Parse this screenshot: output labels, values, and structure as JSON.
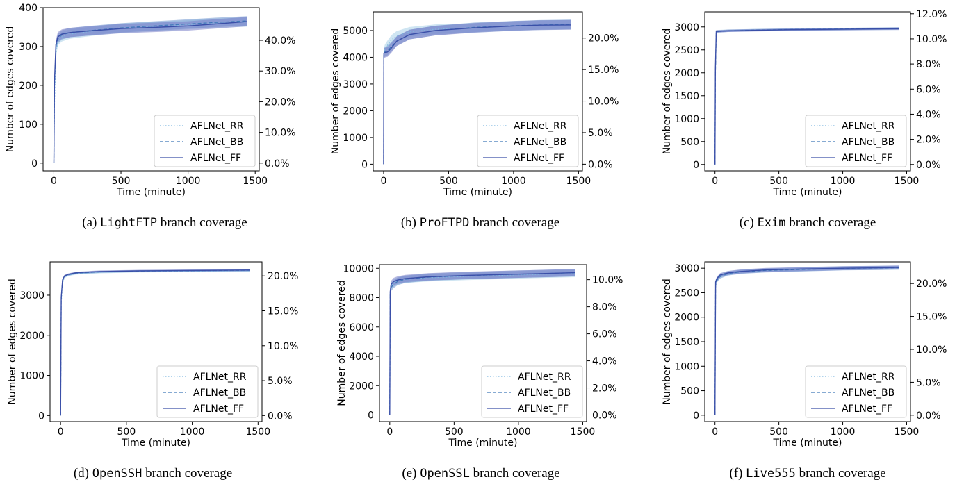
{
  "colors": {
    "RR": "#7fb8e0",
    "BB": "#3f78b8",
    "FF": "#3a4fa8",
    "band_RR": "#a8cfe8",
    "band_BB": "#6f95cf",
    "band_FF": "#7a7fc8"
  },
  "chart_data": [
    {
      "type": "line",
      "caption_label": "(a)",
      "caption_name": "LightFTP",
      "caption_rest": "branch coverage",
      "xlabel": "Time (minute)",
      "ylabel": "Number of edges covered",
      "xlim": [
        -80,
        1530
      ],
      "ylim": [
        -20,
        400
      ],
      "xticks": [
        0,
        500,
        1000,
        1500
      ],
      "yticks": [
        0,
        100,
        200,
        300,
        400
      ],
      "right_ticks": [
        {
          "v": 0,
          "t": "0.0%"
        },
        {
          "v": 79,
          "t": "10.0%"
        },
        {
          "v": 158,
          "t": "20.0%"
        },
        {
          "v": 237,
          "t": "30.0%"
        },
        {
          "v": 316,
          "t": "40.0%"
        }
      ],
      "legend": [
        "AFLNet_RR",
        "AFLNet_BB",
        "AFLNet_FF"
      ],
      "series": [
        {
          "name": "AFLNet_RR",
          "x": [
            0,
            5,
            15,
            30,
            60,
            120,
            300,
            500,
            800,
            1000,
            1200,
            1440
          ],
          "y": [
            0,
            150,
            280,
            315,
            325,
            332,
            340,
            347,
            352,
            356,
            360,
            363
          ],
          "band": 12
        },
        {
          "name": "AFLNet_BB",
          "x": [
            0,
            5,
            15,
            30,
            60,
            120,
            300,
            500,
            800,
            1000,
            1200,
            1440
          ],
          "y": [
            0,
            200,
            300,
            320,
            330,
            336,
            342,
            348,
            354,
            358,
            362,
            366
          ],
          "band": 12
        },
        {
          "name": "AFLNet_FF",
          "x": [
            0,
            5,
            15,
            30,
            60,
            120,
            300,
            500,
            800,
            1000,
            1200,
            1440
          ],
          "y": [
            0,
            210,
            305,
            325,
            332,
            336,
            341,
            346,
            350,
            353,
            358,
            364
          ],
          "band": 12
        }
      ]
    },
    {
      "type": "line",
      "caption_label": "(b)",
      "caption_name": "ProFTPD",
      "caption_rest": "branch coverage",
      "xlabel": "Time (minute)",
      "ylabel": "Number of edges covered",
      "xlim": [
        -80,
        1530
      ],
      "ylim": [
        -250,
        5700
      ],
      "xticks": [
        0,
        500,
        1000,
        1500
      ],
      "yticks": [
        0,
        1000,
        2000,
        3000,
        4000,
        5000
      ],
      "right_ticks": [
        {
          "v": 0,
          "t": "0.0%"
        },
        {
          "v": 1180,
          "t": "5.0%"
        },
        {
          "v": 2360,
          "t": "10.0%"
        },
        {
          "v": 3540,
          "t": "15.0%"
        },
        {
          "v": 4720,
          "t": "20.0%"
        }
      ],
      "legend": [
        "AFLNet_RR",
        "AFLNet_BB",
        "AFLNet_FF"
      ],
      "series": [
        {
          "name": "AFLNet_RR",
          "x": [
            0,
            2,
            10,
            30,
            60,
            100,
            200,
            400,
            700,
            1000,
            1200,
            1440
          ],
          "y": [
            0,
            4150,
            4300,
            4450,
            4650,
            4800,
            4950,
            5050,
            5100,
            5170,
            5200,
            5220
          ],
          "band": 180
        },
        {
          "name": "AFLNet_BB",
          "x": [
            0,
            2,
            10,
            30,
            60,
            100,
            200,
            400,
            700,
            1000,
            1200,
            1440
          ],
          "y": [
            0,
            4150,
            4200,
            4250,
            4400,
            4600,
            4850,
            5000,
            5120,
            5180,
            5210,
            5230
          ],
          "band": 180
        },
        {
          "name": "AFLNet_FF",
          "x": [
            0,
            2,
            10,
            30,
            60,
            100,
            200,
            400,
            700,
            1000,
            1200,
            1440
          ],
          "y": [
            0,
            4150,
            4170,
            4200,
            4350,
            4600,
            4850,
            5000,
            5100,
            5170,
            5200,
            5210
          ],
          "band": 180
        }
      ]
    },
    {
      "type": "line",
      "caption_label": "(c)",
      "caption_name": "Exim",
      "caption_rest": "branch coverage",
      "xlabel": "Time (minute)",
      "ylabel": "Number of edges covered",
      "xlim": [
        -80,
        1530
      ],
      "ylim": [
        -140,
        3330
      ],
      "xticks": [
        0,
        500,
        1000,
        1500
      ],
      "yticks": [
        0,
        500,
        1000,
        1500,
        2000,
        2500,
        3000
      ],
      "right_ticks": [
        {
          "v": 0,
          "t": "0.0%"
        },
        {
          "v": 548,
          "t": "2.0%"
        },
        {
          "v": 1096,
          "t": "4.0%"
        },
        {
          "v": 1644,
          "t": "6.0%"
        },
        {
          "v": 2192,
          "t": "8.0%"
        },
        {
          "v": 2740,
          "t": "10.0%"
        },
        {
          "v": 3288,
          "t": "12.0%"
        }
      ],
      "legend": [
        "AFLNet_RR",
        "AFLNet_BB",
        "AFLNet_FF"
      ],
      "series": [
        {
          "name": "AFLNet_RR",
          "x": [
            0,
            3,
            10,
            20,
            100,
            300,
            600,
            1000,
            1440
          ],
          "y": [
            0,
            2000,
            2900,
            2910,
            2920,
            2930,
            2940,
            2950,
            2960
          ],
          "band": 25
        },
        {
          "name": "AFLNet_BB",
          "x": [
            0,
            3,
            10,
            20,
            100,
            300,
            600,
            1000,
            1440
          ],
          "y": [
            0,
            1900,
            2880,
            2900,
            2915,
            2930,
            2945,
            2955,
            2970
          ],
          "band": 25
        },
        {
          "name": "AFLNet_FF",
          "x": [
            0,
            3,
            10,
            20,
            100,
            300,
            600,
            1000,
            1440
          ],
          "y": [
            0,
            2100,
            2910,
            2905,
            2915,
            2925,
            2940,
            2950,
            2960
          ],
          "band": 25
        }
      ]
    },
    {
      "type": "line",
      "caption_label": "(d)",
      "caption_name": "OpenSSH",
      "caption_rest": "branch coverage",
      "xlabel": "Time (minute)",
      "ylabel": "Number of edges covered",
      "xlim": [
        -80,
        1530
      ],
      "ylim": [
        -150,
        3830
      ],
      "xticks": [
        0,
        500,
        1000,
        1500
      ],
      "yticks": [
        0,
        1000,
        2000,
        3000
      ],
      "right_ticks": [
        {
          "v": 0,
          "t": "0.0%"
        },
        {
          "v": 870,
          "t": "5.0%"
        },
        {
          "v": 1740,
          "t": "10.0%"
        },
        {
          "v": 2610,
          "t": "15.0%"
        },
        {
          "v": 3480,
          "t": "20.0%"
        }
      ],
      "legend": [
        "AFLNet_RR",
        "AFLNet_BB",
        "AFLNet_FF"
      ],
      "series": [
        {
          "name": "AFLNet_RR",
          "x": [
            0,
            5,
            15,
            30,
            60,
            120,
            300,
            600,
            1000,
            1440
          ],
          "y": [
            0,
            2800,
            3300,
            3450,
            3500,
            3540,
            3570,
            3590,
            3600,
            3610
          ],
          "band": 25
        },
        {
          "name": "AFLNet_BB",
          "x": [
            0,
            5,
            15,
            30,
            60,
            120,
            300,
            600,
            1000,
            1440
          ],
          "y": [
            0,
            2900,
            3350,
            3470,
            3510,
            3550,
            3580,
            3600,
            3610,
            3620
          ],
          "band": 25
        },
        {
          "name": "AFLNet_FF",
          "x": [
            0,
            5,
            15,
            30,
            60,
            120,
            300,
            600,
            1000,
            1440
          ],
          "y": [
            0,
            2950,
            3380,
            3480,
            3520,
            3560,
            3590,
            3605,
            3615,
            3625
          ],
          "band": 25
        }
      ]
    },
    {
      "type": "line",
      "caption_label": "(e)",
      "caption_name": "OpenSSL",
      "caption_rest": "branch coverage",
      "xlabel": "Time (minute)",
      "ylabel": "Number of edges covered",
      "xlim": [
        -80,
        1530
      ],
      "ylim": [
        -450,
        10250
      ],
      "xticks": [
        0,
        500,
        1000,
        1500
      ],
      "yticks": [
        0,
        2000,
        4000,
        6000,
        8000,
        10000
      ],
      "right_ticks": [
        {
          "v": 0,
          "t": "0.0%"
        },
        {
          "v": 900,
          "t": "2.0%"
        },
        {
          "v": 1800,
          "t": "4.0%"
        },
        {
          "v": 2700,
          "t": "6.0%"
        },
        {
          "v": 3600,
          "t": "8.0%"
        },
        {
          "v": 4500,
          "t": "10.0%"
        }
      ],
      "right_scale": 2.05,
      "legend": [
        "AFLNet_RR",
        "AFLNet_BB",
        "AFLNet_FF"
      ],
      "series": [
        {
          "name": "AFLNet_RR",
          "x": [
            0,
            3,
            10,
            30,
            60,
            120,
            300,
            600,
            1000,
            1440
          ],
          "y": [
            0,
            8300,
            8800,
            9000,
            9150,
            9250,
            9350,
            9450,
            9550,
            9650
          ],
          "band": 250
        },
        {
          "name": "AFLNet_BB",
          "x": [
            0,
            3,
            10,
            30,
            60,
            120,
            300,
            600,
            1000,
            1440
          ],
          "y": [
            0,
            8200,
            8700,
            8900,
            9100,
            9250,
            9400,
            9500,
            9600,
            9700
          ],
          "band": 250
        },
        {
          "name": "AFLNet_FF",
          "x": [
            0,
            3,
            10,
            30,
            60,
            120,
            300,
            600,
            1000,
            1440
          ],
          "y": [
            0,
            8400,
            8900,
            9100,
            9200,
            9300,
            9420,
            9520,
            9600,
            9700
          ],
          "band": 250
        }
      ]
    },
    {
      "type": "line",
      "caption_label": "(f)",
      "caption_name": "Live555",
      "caption_rest": "branch coverage",
      "xlabel": "Time (minute)",
      "ylabel": "Number of edges covered",
      "xlim": [
        -80,
        1530
      ],
      "ylim": [
        -130,
        3130
      ],
      "xticks": [
        0,
        500,
        1000,
        1500
      ],
      "yticks": [
        0,
        500,
        1000,
        1500,
        2000,
        2500,
        3000
      ],
      "right_ticks": [
        {
          "v": 0,
          "t": "0.0%"
        },
        {
          "v": 672,
          "t": "5.0%"
        },
        {
          "v": 1344,
          "t": "10.0%"
        },
        {
          "v": 2016,
          "t": "15.0%"
        },
        {
          "v": 2688,
          "t": "20.0%"
        }
      ],
      "legend": [
        "AFLNet_RR",
        "AFLNet_BB",
        "AFLNet_FF"
      ],
      "series": [
        {
          "name": "AFLNet_RR",
          "x": [
            0,
            5,
            15,
            40,
            100,
            200,
            400,
            700,
            1000,
            1440
          ],
          "y": [
            0,
            2700,
            2780,
            2850,
            2900,
            2930,
            2960,
            2980,
            3000,
            3010
          ],
          "band": 40
        },
        {
          "name": "AFLNet_BB",
          "x": [
            0,
            5,
            15,
            40,
            100,
            200,
            400,
            700,
            1000,
            1440
          ],
          "y": [
            0,
            2650,
            2750,
            2830,
            2890,
            2925,
            2955,
            2975,
            2995,
            3010
          ],
          "band": 40
        },
        {
          "name": "AFLNet_FF",
          "x": [
            0,
            5,
            15,
            40,
            100,
            200,
            400,
            700,
            1000,
            1440
          ],
          "y": [
            0,
            2720,
            2790,
            2860,
            2905,
            2935,
            2965,
            2985,
            3000,
            3015
          ],
          "band": 40
        }
      ]
    }
  ]
}
